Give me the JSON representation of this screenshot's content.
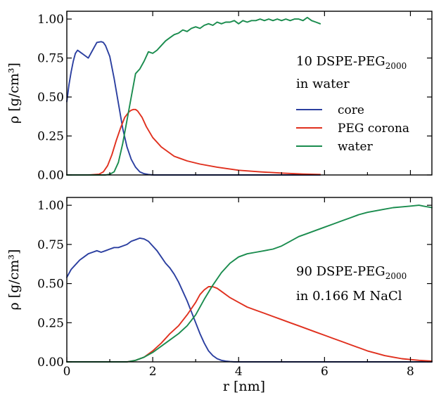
{
  "chart_data": [
    {
      "type": "line",
      "xlabel": "",
      "ylabel": "ρ [g/cm³]",
      "xlim": [
        0,
        8.5
      ],
      "ylim": [
        0,
        1.05
      ],
      "xticks": [
        0,
        2,
        4,
        6,
        8
      ],
      "xtick_labels": [
        "",
        "",
        "",
        "",
        ""
      ],
      "yticks": [
        0,
        0.25,
        0.5,
        0.75,
        1.0
      ],
      "ytick_labels": [
        "0.00",
        "0.25",
        "0.50",
        "0.75",
        "1.00"
      ],
      "annotation": {
        "line1_main": "10 DSPE-PEG",
        "line1_sub": "2000",
        "line2": "in water"
      },
      "legend": {
        "placement": "right",
        "entries": [
          "core",
          "PEG corona",
          "water"
        ]
      },
      "series": [
        {
          "name": "core",
          "color": "#2b3fa0",
          "x": [
            0,
            0.05,
            0.1,
            0.15,
            0.2,
            0.25,
            0.3,
            0.4,
            0.5,
            0.6,
            0.7,
            0.8,
            0.85,
            0.9,
            1.0,
            1.1,
            1.2,
            1.3,
            1.4,
            1.5,
            1.6,
            1.7,
            1.8,
            1.9,
            2.0,
            2.5,
            3,
            4,
            5,
            5.9
          ],
          "y": [
            0.47,
            0.58,
            0.66,
            0.73,
            0.78,
            0.8,
            0.79,
            0.77,
            0.75,
            0.8,
            0.85,
            0.855,
            0.85,
            0.83,
            0.76,
            0.62,
            0.46,
            0.3,
            0.18,
            0.1,
            0.05,
            0.02,
            0.008,
            0.003,
            0.0,
            0.0,
            0.0,
            0.0,
            0.0,
            0.0
          ]
        },
        {
          "name": "PEG corona",
          "color": "#e0301e",
          "x": [
            0,
            0.5,
            0.75,
            0.85,
            0.95,
            1.05,
            1.15,
            1.25,
            1.35,
            1.45,
            1.5,
            1.55,
            1.6,
            1.65,
            1.75,
            1.85,
            2.0,
            2.2,
            2.5,
            2.8,
            3.1,
            3.5,
            4.0,
            4.5,
            5.0,
            5.5,
            5.9
          ],
          "y": [
            0,
            0,
            0.005,
            0.02,
            0.06,
            0.13,
            0.22,
            0.3,
            0.37,
            0.405,
            0.415,
            0.42,
            0.42,
            0.41,
            0.37,
            0.31,
            0.24,
            0.18,
            0.12,
            0.09,
            0.07,
            0.05,
            0.03,
            0.02,
            0.012,
            0.006,
            0.003
          ]
        },
        {
          "name": "water",
          "color": "#1a8c4e",
          "x": [
            0,
            0.9,
            1.0,
            1.1,
            1.2,
            1.3,
            1.4,
            1.5,
            1.6,
            1.7,
            1.8,
            1.9,
            2.0,
            2.1,
            2.2,
            2.3,
            2.4,
            2.5,
            2.6,
            2.7,
            2.8,
            2.9,
            3.0,
            3.1,
            3.2,
            3.3,
            3.4,
            3.5,
            3.6,
            3.7,
            3.8,
            3.9,
            4.0,
            4.1,
            4.2,
            4.3,
            4.4,
            4.5,
            4.6,
            4.7,
            4.8,
            4.9,
            5.0,
            5.1,
            5.2,
            5.3,
            5.4,
            5.5,
            5.6,
            5.7,
            5.8,
            5.9
          ],
          "y": [
            0,
            0,
            0.005,
            0.02,
            0.08,
            0.2,
            0.35,
            0.5,
            0.65,
            0.68,
            0.73,
            0.79,
            0.78,
            0.8,
            0.83,
            0.86,
            0.88,
            0.9,
            0.91,
            0.93,
            0.92,
            0.94,
            0.95,
            0.94,
            0.96,
            0.97,
            0.96,
            0.98,
            0.97,
            0.98,
            0.98,
            0.99,
            0.97,
            0.99,
            0.98,
            0.99,
            0.99,
            1.0,
            0.99,
            1.0,
            0.99,
            1.0,
            0.99,
            1.0,
            0.99,
            1.0,
            1.0,
            0.99,
            1.01,
            0.99,
            0.98,
            0.97
          ]
        }
      ]
    },
    {
      "type": "line",
      "xlabel": "r [nm]",
      "ylabel": "ρ [g/cm³]",
      "xlim": [
        0,
        8.5
      ],
      "ylim": [
        0,
        1.05
      ],
      "xticks": [
        0,
        2,
        4,
        6,
        8
      ],
      "xtick_labels": [
        "0",
        "2",
        "4",
        "6",
        "8"
      ],
      "yticks": [
        0,
        0.25,
        0.5,
        0.75,
        1.0
      ],
      "ytick_labels": [
        "0.00",
        "0.25",
        "0.50",
        "0.75",
        "1.00"
      ],
      "annotation": {
        "line1_main": "90 DSPE-PEG",
        "line1_sub": "2000",
        "line2": "in 0.166 M NaCl"
      },
      "series": [
        {
          "name": "core",
          "color": "#2b3fa0",
          "x": [
            0,
            0.1,
            0.2,
            0.3,
            0.4,
            0.5,
            0.6,
            0.7,
            0.8,
            0.9,
            1.0,
            1.1,
            1.2,
            1.3,
            1.4,
            1.5,
            1.6,
            1.7,
            1.8,
            1.9,
            2.0,
            2.1,
            2.2,
            2.3,
            2.4,
            2.5,
            2.6,
            2.7,
            2.8,
            2.9,
            3.0,
            3.1,
            3.2,
            3.3,
            3.4,
            3.5,
            3.6,
            3.7,
            3.8,
            3.9,
            4.0,
            4.5,
            5,
            6,
            7,
            8,
            8.5
          ],
          "y": [
            0.54,
            0.59,
            0.62,
            0.65,
            0.67,
            0.69,
            0.7,
            0.71,
            0.7,
            0.71,
            0.72,
            0.73,
            0.73,
            0.74,
            0.75,
            0.77,
            0.78,
            0.79,
            0.785,
            0.77,
            0.74,
            0.71,
            0.67,
            0.63,
            0.6,
            0.56,
            0.51,
            0.45,
            0.39,
            0.32,
            0.25,
            0.18,
            0.12,
            0.07,
            0.04,
            0.02,
            0.01,
            0.005,
            0.002,
            0.0,
            0.0,
            0.0,
            0.0,
            0.0,
            0.0,
            0.0,
            0.0
          ]
        },
        {
          "name": "PEG corona",
          "color": "#e0301e",
          "x": [
            0,
            1.4,
            1.6,
            1.8,
            2.0,
            2.2,
            2.4,
            2.6,
            2.8,
            3.0,
            3.1,
            3.2,
            3.3,
            3.4,
            3.5,
            3.6,
            3.8,
            4.0,
            4.2,
            4.4,
            4.6,
            4.8,
            5.0,
            5.2,
            5.4,
            5.6,
            5.8,
            6.0,
            6.2,
            6.4,
            6.6,
            6.8,
            7.0,
            7.2,
            7.4,
            7.6,
            7.8,
            8.0,
            8.2,
            8.5
          ],
          "y": [
            0,
            0,
            0.01,
            0.03,
            0.07,
            0.12,
            0.18,
            0.23,
            0.3,
            0.38,
            0.43,
            0.46,
            0.48,
            0.48,
            0.47,
            0.45,
            0.41,
            0.38,
            0.35,
            0.33,
            0.31,
            0.29,
            0.27,
            0.25,
            0.23,
            0.21,
            0.19,
            0.17,
            0.15,
            0.13,
            0.11,
            0.09,
            0.07,
            0.055,
            0.04,
            0.03,
            0.02,
            0.015,
            0.01,
            0.005
          ]
        },
        {
          "name": "water",
          "color": "#1a8c4e",
          "x": [
            0,
            1.4,
            1.6,
            1.8,
            2.0,
            2.2,
            2.4,
            2.6,
            2.8,
            3.0,
            3.2,
            3.4,
            3.6,
            3.8,
            4.0,
            4.2,
            4.4,
            4.6,
            4.8,
            5.0,
            5.2,
            5.4,
            5.6,
            5.8,
            6.0,
            6.2,
            6.4,
            6.6,
            6.8,
            7.0,
            7.2,
            7.4,
            7.6,
            7.8,
            8.0,
            8.2,
            8.3,
            8.5
          ],
          "y": [
            0,
            0,
            0.01,
            0.03,
            0.06,
            0.1,
            0.14,
            0.18,
            0.23,
            0.3,
            0.4,
            0.49,
            0.57,
            0.63,
            0.67,
            0.69,
            0.7,
            0.71,
            0.72,
            0.74,
            0.77,
            0.8,
            0.82,
            0.84,
            0.86,
            0.88,
            0.9,
            0.92,
            0.94,
            0.955,
            0.965,
            0.975,
            0.985,
            0.99,
            0.995,
            1.0,
            0.995,
            0.985
          ]
        }
      ]
    }
  ]
}
